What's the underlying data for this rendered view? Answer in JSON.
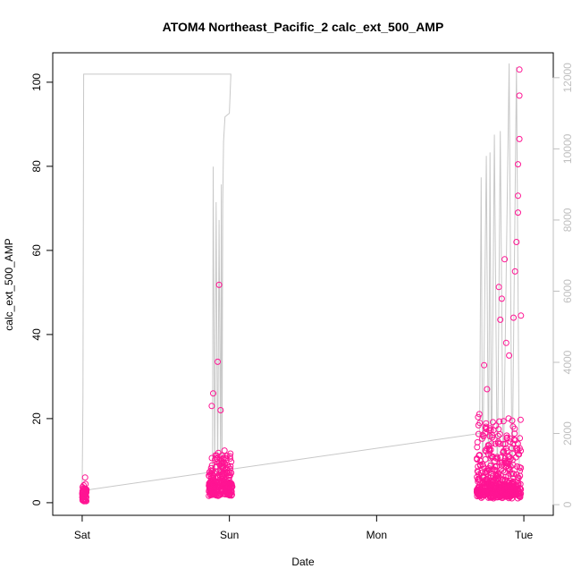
{
  "chart_data": {
    "type": "scatter",
    "title": "ATOM4 Northeast_Pacific_2 calc_ext_500_AMP",
    "xlabel": "Date",
    "ylabel": "calc_ext_500_AMP",
    "x_ticks": [
      "Sat",
      "Sun",
      "Mon",
      "Tue"
    ],
    "x_tick_pos": [
      0,
      1,
      2,
      3
    ],
    "xlim": [
      -0.2,
      3.2
    ],
    "ylim": [
      -3,
      107
    ],
    "y_ticks": [
      0,
      20,
      40,
      60,
      80,
      100
    ],
    "y2lim": [
      -300,
      12700
    ],
    "y2_ticks": [
      0,
      2000,
      4000,
      6000,
      8000,
      10000,
      12000
    ],
    "grid": false,
    "legend": "none",
    "point_color": "#ff1493",
    "line_color": "#c8c8c8",
    "series": [
      {
        "kind": "points",
        "axis": "left",
        "clusters": [
          {
            "x_start": 0.0,
            "x_end": 0.03,
            "n": 60,
            "base": 1.8,
            "spread": 2.0
          },
          {
            "x_start": 0.86,
            "x_end": 1.02,
            "n": 260,
            "base": 3.0,
            "spread": 9.0
          },
          {
            "x_start": 2.68,
            "x_end": 2.98,
            "n": 520,
            "base": 2.5,
            "spread": 18.0
          }
        ],
        "outliers": [
          {
            "x": 0.02,
            "y": 6.0
          },
          {
            "x": 0.88,
            "y": 23.0
          },
          {
            "x": 0.89,
            "y": 26.0
          },
          {
            "x": 0.92,
            "y": 33.5
          },
          {
            "x": 0.93,
            "y": 51.8
          },
          {
            "x": 0.94,
            "y": 22.0
          },
          {
            "x": 2.73,
            "y": 32.7
          },
          {
            "x": 2.75,
            "y": 27.0
          },
          {
            "x": 2.83,
            "y": 51.3
          },
          {
            "x": 2.84,
            "y": 43.5
          },
          {
            "x": 2.85,
            "y": 48.5
          },
          {
            "x": 2.87,
            "y": 57.9
          },
          {
            "x": 2.88,
            "y": 38.0
          },
          {
            "x": 2.9,
            "y": 35.0
          },
          {
            "x": 2.93,
            "y": 44.0
          },
          {
            "x": 2.94,
            "y": 55.0
          },
          {
            "x": 2.95,
            "y": 62.0
          },
          {
            "x": 2.96,
            "y": 73.0
          },
          {
            "x": 2.96,
            "y": 80.5
          },
          {
            "x": 2.97,
            "y": 86.5
          },
          {
            "x": 2.97,
            "y": 96.8
          },
          {
            "x": 2.97,
            "y": 103.0
          },
          {
            "x": 2.96,
            "y": 69.0
          },
          {
            "x": 2.98,
            "y": 44.5
          }
        ]
      },
      {
        "kind": "line",
        "axis": "right",
        "points": [
          [
            0.0,
            400
          ],
          [
            0.005,
            3000
          ],
          [
            0.01,
            12100
          ],
          [
            1.01,
            12100
          ],
          [
            1.0,
            11000
          ],
          [
            0.97,
            10900
          ],
          [
            0.96,
            10200
          ],
          [
            0.955,
            8500
          ],
          [
            0.95,
            800
          ],
          [
            0.945,
            9000
          ],
          [
            0.94,
            800
          ],
          [
            0.93,
            8000
          ],
          [
            0.92,
            600
          ],
          [
            0.91,
            8500
          ],
          [
            0.9,
            700
          ],
          [
            0.89,
            9500
          ],
          [
            0.885,
            600
          ]
        ],
        "points_b": [
          [
            0.01,
            400
          ],
          [
            2.7,
            2000
          ],
          [
            2.71,
            9200
          ],
          [
            2.72,
            500
          ],
          [
            2.745,
            9800
          ],
          [
            2.76,
            500
          ],
          [
            2.77,
            9900
          ],
          [
            2.78,
            500
          ],
          [
            2.8,
            10400
          ],
          [
            2.82,
            500
          ],
          [
            2.84,
            10500
          ],
          [
            2.86,
            500
          ],
          [
            2.9,
            12400
          ],
          [
            2.92,
            500
          ],
          [
            2.95,
            12300
          ],
          [
            2.97,
            500
          ]
        ]
      }
    ]
  }
}
